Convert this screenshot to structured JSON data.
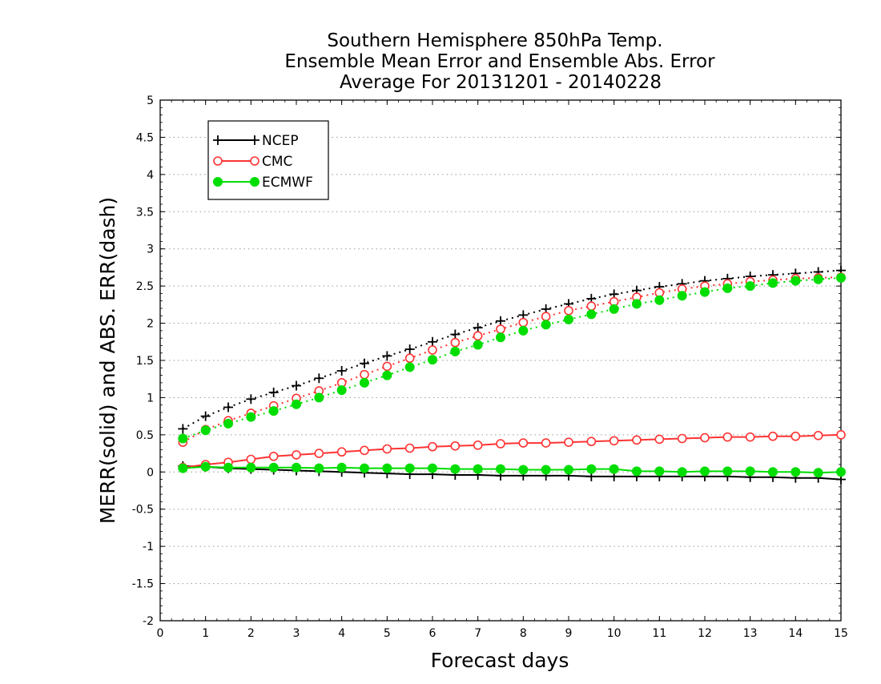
{
  "chart_data": {
    "type": "line",
    "title": [
      "Southern Hemisphere 850hPa Temp.",
      "Ensemble Mean Error and Ensemble Abs. Error",
      "Average For 20131201 - 20140228"
    ],
    "xlabel": "Forecast days",
    "ylabel": "MERR(solid) and ABS. ERR(dash)",
    "xlim": [
      0,
      15
    ],
    "ylim": [
      -2,
      5
    ],
    "xticks": [
      "0",
      "1",
      "2",
      "3",
      "4",
      "5",
      "6",
      "7",
      "8",
      "9",
      "10",
      "11",
      "12",
      "13",
      "14",
      "15"
    ],
    "yticks": [
      "-2",
      "-1.5",
      "-1",
      "-0.5",
      "0",
      "0.5",
      "1",
      "1.5",
      "2",
      "2.5",
      "3",
      "3.5",
      "4",
      "4.5",
      "5"
    ],
    "grid": "horizontal dotted",
    "legend_position": "top-left",
    "x": [
      0.5,
      1,
      1.5,
      2,
      2.5,
      3,
      3.5,
      4,
      4.5,
      5,
      5.5,
      6,
      6.5,
      7,
      7.5,
      8,
      8.5,
      9,
      9.5,
      10,
      10.5,
      11,
      11.5,
      12,
      12.5,
      13,
      13.5,
      14,
      14.5,
      15
    ],
    "series": [
      {
        "name": "NCEP",
        "color": "#000000",
        "marker": "plus",
        "merr": [
          0.08,
          0.07,
          0.05,
          0.04,
          0.03,
          0.02,
          0.01,
          0.0,
          -0.01,
          -0.02,
          -0.03,
          -0.03,
          -0.04,
          -0.04,
          -0.05,
          -0.05,
          -0.05,
          -0.05,
          -0.06,
          -0.06,
          -0.06,
          -0.06,
          -0.06,
          -0.06,
          -0.06,
          -0.07,
          -0.07,
          -0.08,
          -0.08,
          -0.1
        ],
        "abs_err": [
          0.58,
          0.75,
          0.87,
          0.98,
          1.07,
          1.16,
          1.26,
          1.36,
          1.46,
          1.56,
          1.65,
          1.75,
          1.85,
          1.94,
          2.03,
          2.11,
          2.19,
          2.26,
          2.33,
          2.39,
          2.44,
          2.49,
          2.53,
          2.57,
          2.6,
          2.63,
          2.65,
          2.67,
          2.69,
          2.71
        ]
      },
      {
        "name": "CMC",
        "color": "#ff3333",
        "marker": "open-circle",
        "merr": [
          0.06,
          0.1,
          0.13,
          0.17,
          0.21,
          0.23,
          0.25,
          0.27,
          0.29,
          0.31,
          0.32,
          0.34,
          0.35,
          0.36,
          0.38,
          0.39,
          0.39,
          0.4,
          0.41,
          0.42,
          0.43,
          0.44,
          0.45,
          0.46,
          0.47,
          0.47,
          0.48,
          0.48,
          0.49,
          0.5
        ],
        "abs_err": [
          0.4,
          0.57,
          0.69,
          0.79,
          0.89,
          0.99,
          1.09,
          1.2,
          1.31,
          1.42,
          1.53,
          1.64,
          1.74,
          1.83,
          1.92,
          2.01,
          2.09,
          2.17,
          2.23,
          2.29,
          2.35,
          2.41,
          2.46,
          2.5,
          2.53,
          2.56,
          2.58,
          2.6,
          2.61,
          2.62
        ]
      },
      {
        "name": "ECMWF",
        "color": "#00dd00",
        "marker": "filled-circle",
        "merr": [
          0.05,
          0.07,
          0.06,
          0.06,
          0.06,
          0.06,
          0.05,
          0.06,
          0.05,
          0.05,
          0.05,
          0.05,
          0.04,
          0.04,
          0.04,
          0.03,
          0.03,
          0.03,
          0.04,
          0.04,
          0.01,
          0.01,
          0.0,
          0.01,
          0.01,
          0.01,
          0.0,
          0.0,
          -0.01,
          0.0
        ],
        "abs_err": [
          0.45,
          0.56,
          0.65,
          0.74,
          0.82,
          0.91,
          1.0,
          1.1,
          1.2,
          1.3,
          1.41,
          1.51,
          1.62,
          1.71,
          1.81,
          1.9,
          1.98,
          2.05,
          2.12,
          2.19,
          2.26,
          2.31,
          2.37,
          2.42,
          2.47,
          2.5,
          2.54,
          2.57,
          2.59,
          2.61
        ]
      }
    ]
  }
}
